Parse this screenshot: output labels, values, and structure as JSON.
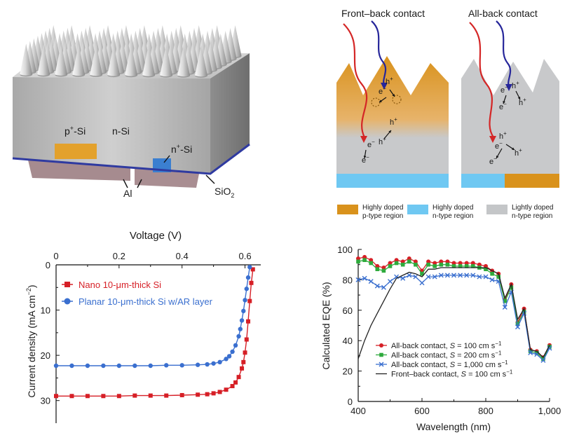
{
  "colors": {
    "p_region": "#d9921c",
    "n_region": "#6fc8f2",
    "light_n": "#c4c6c8",
    "photon_red": "#d42626",
    "photon_blue": "#26269a",
    "iv_nano": "#d61f26",
    "iv_planar": "#3a6fcf",
    "eqe_s100": "#d61f26",
    "eqe_s200": "#2eaa3c",
    "eqe_s1000": "#3a6fcf",
    "eqe_front": "#222222"
  },
  "device": {
    "label_p": "p",
    "label_p_sup": "+",
    "label_p_tail": "-Si",
    "label_nsi": "n-Si",
    "label_n": "n",
    "label_n_sup": "+",
    "label_n_tail": "-Si",
    "label_al": "Al",
    "label_sio": "SiO",
    "label_sio_sub": "2"
  },
  "contacts": {
    "front_title": "Front–back contact",
    "back_title": "All-back contact",
    "electron": "e",
    "hole": "h",
    "minus": "−",
    "plus": "+",
    "legend": [
      {
        "line1": "Highly doped",
        "line2": "p-type region",
        "color_key": "p_region"
      },
      {
        "line1": "Highly doped",
        "line2": "n-type region",
        "color_key": "n_region"
      },
      {
        "line1": "Lightly doped",
        "line2": "n-type region",
        "color_key": "light_n"
      }
    ]
  },
  "chart_data": [
    {
      "type": "line",
      "xlabel": "Voltage (V)",
      "ylabel_main": "Current density (mA cm",
      "ylabel_sup": "−2",
      "ylabel_tail": ")",
      "xlim": [
        0,
        0.65
      ],
      "ylim": [
        0,
        35
      ],
      "x_axis_position": "top",
      "y_inverted": true,
      "xticks": [
        0,
        0.2,
        0.4,
        0.6
      ],
      "xtick_labels": [
        "0",
        "0.2",
        "0.4",
        "0.6"
      ],
      "yticks": [
        0,
        10,
        20,
        30
      ],
      "ytick_labels": [
        "0",
        "10",
        "20",
        "30"
      ],
      "legend_position": "top-left",
      "series": [
        {
          "name": "Nano 10-μm-thick Si",
          "marker": "square",
          "color_key": "iv_nano",
          "x": [
            0.0,
            0.05,
            0.1,
            0.15,
            0.2,
            0.25,
            0.3,
            0.35,
            0.4,
            0.45,
            0.48,
            0.5,
            0.52,
            0.54,
            0.56,
            0.57,
            0.58,
            0.59,
            0.595,
            0.6,
            0.605,
            0.61,
            0.615,
            0.62,
            0.625
          ],
          "y": [
            29.0,
            29.0,
            29.0,
            29.0,
            29.0,
            28.9,
            28.9,
            28.9,
            28.8,
            28.7,
            28.6,
            28.4,
            28.1,
            27.6,
            26.8,
            26.0,
            24.8,
            22.9,
            21.5,
            19.4,
            16.5,
            12.5,
            8.0,
            4.0,
            1.0
          ]
        },
        {
          "name": "Planar 10-μm-thick Si w/AR layer",
          "marker": "circle",
          "color_key": "iv_planar",
          "x": [
            0.0,
            0.05,
            0.1,
            0.15,
            0.2,
            0.25,
            0.3,
            0.35,
            0.4,
            0.45,
            0.48,
            0.5,
            0.52,
            0.54,
            0.55,
            0.56,
            0.57,
            0.58,
            0.585,
            0.59,
            0.595,
            0.6,
            0.605,
            0.61,
            0.615
          ],
          "y": [
            22.3,
            22.3,
            22.3,
            22.3,
            22.3,
            22.3,
            22.3,
            22.2,
            22.2,
            22.1,
            22.0,
            21.8,
            21.5,
            20.8,
            20.2,
            19.2,
            17.8,
            15.8,
            14.2,
            12.3,
            10.2,
            7.8,
            5.3,
            2.8,
            0.5
          ]
        }
      ]
    },
    {
      "type": "line",
      "xlabel": "Wavelength (nm)",
      "ylabel": "Calculated EQE (%)",
      "xlim": [
        400,
        1000
      ],
      "ylim": [
        0,
        100
      ],
      "xticks": [
        400,
        600,
        800,
        1000
      ],
      "xtick_labels": [
        "400",
        "600",
        "800",
        "1,000"
      ],
      "yticks": [
        0,
        20,
        40,
        60,
        80,
        100
      ],
      "ytick_labels": [
        "0",
        "20",
        "40",
        "60",
        "80",
        "100"
      ],
      "legend_position": "bottom-right",
      "series": [
        {
          "name_main": "All-back contact, ",
          "name_s": "S",
          "name_val": " = 100 cm s",
          "name_sup": "−1",
          "marker": "circle",
          "color_key": "eqe_s100",
          "x": [
            400,
            420,
            440,
            460,
            480,
            500,
            520,
            540,
            560,
            580,
            600,
            620,
            640,
            660,
            680,
            700,
            720,
            740,
            760,
            780,
            800,
            820,
            840,
            860,
            880,
            900,
            920,
            940,
            960,
            980,
            1000
          ],
          "y": [
            94,
            95,
            93,
            89,
            88,
            91,
            93,
            92,
            94,
            92,
            86,
            92,
            91,
            92,
            92,
            91,
            91,
            91,
            91,
            90,
            89,
            86,
            84,
            67,
            77,
            52,
            61,
            34,
            33,
            29,
            37
          ]
        },
        {
          "name_main": "All-back contact, ",
          "name_s": "S",
          "name_val": " = 200 cm s",
          "name_sup": "−1",
          "marker": "square",
          "color_key": "eqe_s200",
          "x": [
            400,
            420,
            440,
            460,
            480,
            500,
            520,
            540,
            560,
            580,
            600,
            620,
            640,
            660,
            680,
            700,
            720,
            740,
            760,
            780,
            800,
            820,
            840,
            860,
            880,
            900,
            920,
            940,
            960,
            980,
            1000
          ],
          "y": [
            92,
            93,
            91,
            87,
            86,
            89,
            91,
            90,
            92,
            90,
            84,
            90,
            89,
            90,
            90,
            89,
            89,
            89,
            89,
            88,
            87,
            84,
            82,
            66,
            75,
            51,
            59,
            33,
            32,
            28,
            36
          ]
        },
        {
          "name_main": "All-back contact, ",
          "name_s": "S",
          "name_val": " = 1,000 cm s",
          "name_sup": "−1",
          "marker": "x",
          "color_key": "eqe_s1000",
          "x": [
            400,
            420,
            440,
            460,
            480,
            500,
            520,
            540,
            560,
            580,
            600,
            620,
            640,
            660,
            680,
            700,
            720,
            740,
            760,
            780,
            800,
            820,
            840,
            860,
            880,
            900,
            920,
            940,
            960,
            980,
            1000
          ],
          "y": [
            80,
            81,
            79,
            76,
            75,
            79,
            82,
            81,
            83,
            82,
            78,
            82,
            82,
            83,
            83,
            83,
            83,
            83,
            83,
            82,
            82,
            80,
            79,
            62,
            72,
            49,
            58,
            32,
            31,
            27,
            35
          ]
        },
        {
          "name_main": "Front–back contact, ",
          "name_s": "S",
          "name_val": " = 100 cm s",
          "name_sup": "−1",
          "marker": "none",
          "color_key": "eqe_front",
          "x": [
            400,
            420,
            440,
            460,
            480,
            500,
            520,
            540,
            560,
            580,
            600,
            620,
            640,
            660,
            680,
            700,
            720,
            740,
            760,
            780,
            800,
            820,
            840,
            860,
            880,
            900,
            920,
            940,
            960,
            980,
            1000
          ],
          "y": [
            28,
            40,
            50,
            58,
            66,
            74,
            81,
            83,
            85,
            84,
            82,
            87,
            87,
            88,
            88,
            88,
            88,
            88,
            88,
            88,
            88,
            86,
            84,
            68,
            77,
            54,
            61,
            34,
            33,
            29,
            37
          ]
        }
      ]
    }
  ]
}
